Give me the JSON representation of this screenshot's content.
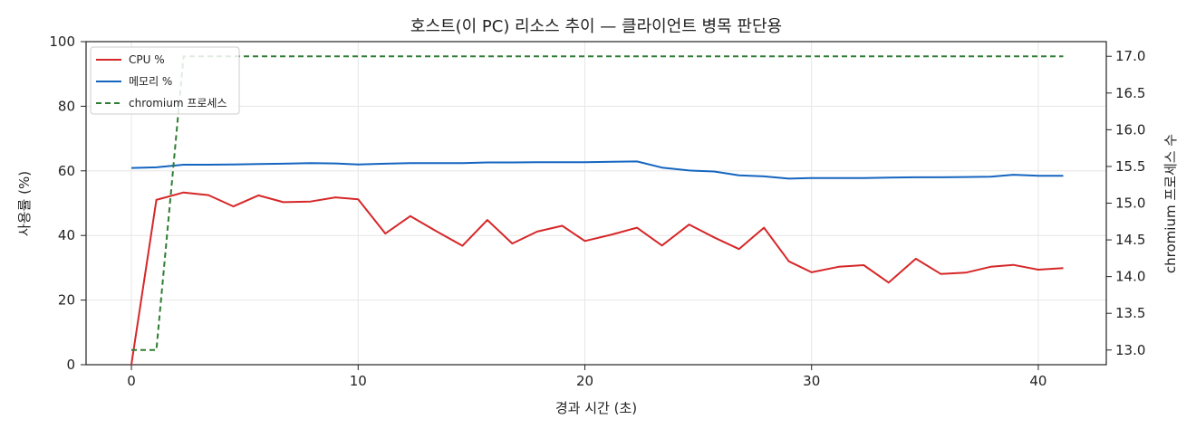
{
  "chart_data": {
    "type": "line",
    "title": "호스트(이 PC) 리소스 추이 — 클라이언트 병목 판단용",
    "xlabel": "경과 시간 (초)",
    "ylabel": "사용률 (%)",
    "y2label": "chromium 프로세스 수",
    "xlim": [
      -2,
      43
    ],
    "ylim": [
      0,
      100
    ],
    "y2lim": [
      12.8,
      17.2
    ],
    "xticks": [
      "0",
      "10",
      "20",
      "30",
      "40"
    ],
    "yticks": [
      "0",
      "20",
      "40",
      "60",
      "80",
      "100"
    ],
    "y2ticks": [
      "13.0",
      "13.5",
      "14.0",
      "14.5",
      "15.0",
      "15.5",
      "16.0",
      "16.5",
      "17.0"
    ],
    "grid": true,
    "legend_position": "top-left",
    "x": [
      0,
      1.1,
      2.3,
      3.4,
      4.5,
      5.6,
      6.7,
      7.9,
      9.0,
      10.0,
      11.2,
      12.3,
      13.4,
      14.6,
      15.7,
      16.8,
      17.9,
      19.0,
      20.0,
      21.2,
      22.3,
      23.4,
      24.6,
      25.7,
      26.8,
      27.9,
      29.0,
      30.0,
      31.2,
      32.3,
      33.4,
      34.6,
      35.7,
      36.8,
      37.9,
      38.9,
      40.0,
      41.1
    ],
    "series": [
      {
        "name": "CPU %",
        "axis": "left",
        "color": "#d62728",
        "style": "solid",
        "values": [
          0,
          51,
          53.3,
          52.5,
          49,
          52.4,
          50.3,
          50.5,
          51.8,
          51.2,
          40.6,
          46,
          41.5,
          36.8,
          44.8,
          37.5,
          41.2,
          43,
          38.3,
          40.3,
          42.4,
          36.9,
          43.4,
          39.4,
          35.8,
          42.4,
          32,
          28.6,
          30.3,
          30.8,
          25.4,
          32.8,
          28.1,
          28.5,
          30.3,
          30.9,
          29.4,
          29.9
        ]
      },
      {
        "name": "메모리 %",
        "axis": "left",
        "color": "#1565c0",
        "style": "solid",
        "values": [
          60.9,
          61.1,
          61.9,
          61.9,
          62,
          62.1,
          62.2,
          62.4,
          62.3,
          62,
          62.2,
          62.4,
          62.4,
          62.4,
          62.6,
          62.6,
          62.7,
          62.7,
          62.7,
          62.8,
          62.9,
          61,
          60.1,
          59.8,
          58.6,
          58.3,
          57.6,
          57.8,
          57.8,
          57.8,
          57.9,
          58,
          58,
          58.1,
          58.2,
          58.8,
          58.5,
          58.5
        ]
      },
      {
        "name": "chromium 프로세스",
        "axis": "right",
        "color": "#2e7d32",
        "style": "dashed",
        "values": [
          13,
          13,
          17,
          17,
          17,
          17,
          17,
          17,
          17,
          17,
          17,
          17,
          17,
          17,
          17,
          17,
          17,
          17,
          17,
          17,
          17,
          17,
          17,
          17,
          17,
          17,
          17,
          17,
          17,
          17,
          17,
          17,
          17,
          17,
          17,
          17,
          17,
          17
        ]
      }
    ]
  }
}
